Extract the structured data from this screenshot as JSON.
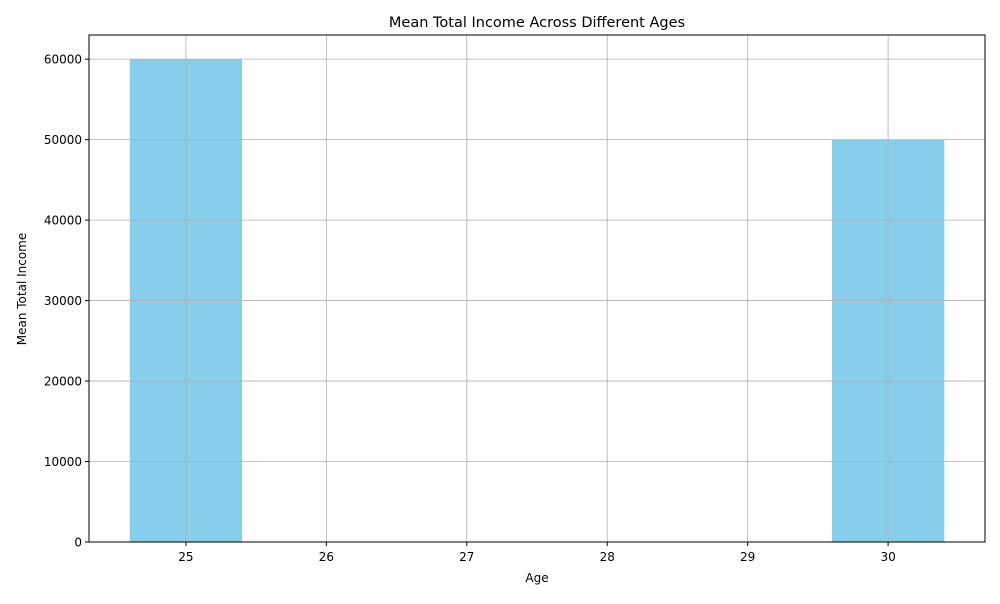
{
  "chart_data": {
    "type": "bar",
    "title": "Mean Total Income Across Different Ages",
    "xlabel": "Age",
    "ylabel": "Mean Total Income",
    "x": [
      25,
      30
    ],
    "values": [
      60000,
      50000
    ],
    "bar_width": 0.8,
    "xlim": [
      24.31,
      30.69
    ],
    "ylim": [
      0,
      63000
    ],
    "xticks": [
      25,
      26,
      27,
      28,
      29,
      30
    ],
    "yticks": [
      0,
      10000,
      20000,
      30000,
      40000,
      50000,
      60000
    ],
    "grid": true,
    "colors": {
      "bar": "#87ceeb",
      "grid": "#b0b0b0",
      "axis": "#000000"
    }
  }
}
